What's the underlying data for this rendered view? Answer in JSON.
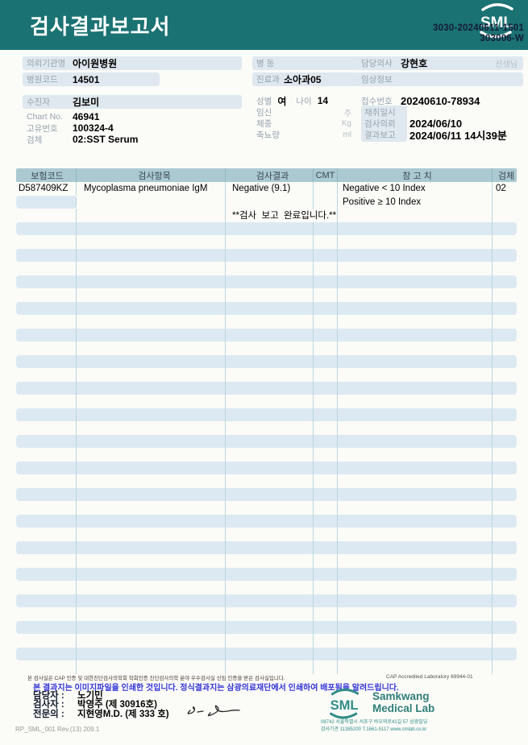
{
  "band": {
    "title": "검사결과보고서",
    "logo_text": "SML",
    "code1": "3030-20240611-1501",
    "code2": "303006-W"
  },
  "info": {
    "left": [
      {
        "label": "의뢰기관명",
        "value": "아이원병원"
      },
      {
        "label": "병원코드",
        "value": "14501"
      },
      {
        "label": "수진자",
        "value": "김보미"
      },
      {
        "label": "Chart No.",
        "value": "46941"
      },
      {
        "label": "고유번호",
        "value": "100324-4"
      },
      {
        "label": "검체",
        "value": "02:SST Serum"
      }
    ],
    "middle": {
      "ward_label": "병 동",
      "dept_label": "진료과",
      "dept_value": "소아과05",
      "sex_label": "성별",
      "sex_value": "여",
      "age_label": "나이",
      "age_value": "14",
      "pregnancy_label": "임신",
      "pregnancy_unit": "주",
      "weight_label": "체중",
      "weight_unit": "Kg",
      "urine_label": "축뇨량",
      "urine_unit": "ml"
    },
    "right": [
      {
        "label": "담당의사",
        "value": "강현호",
        "suffix": "선생님"
      },
      {
        "label": "임상정보",
        "value": ""
      },
      {
        "label": "접수번호",
        "value": "20240610-78934"
      },
      {
        "label": "채취일시",
        "value": ""
      },
      {
        "label": "검사의뢰",
        "value": "2024/06/10"
      },
      {
        "label": "결과보고",
        "value": "2024/06/11 14시39분"
      }
    ]
  },
  "table": {
    "headers": [
      "보험코드",
      "검사항목",
      "검사결과",
      "CMT",
      "참 고 치",
      "검체"
    ],
    "rows": [
      [
        "D587409KZ",
        "Mycoplasma pneumoniae IgM",
        "Negative (9.1)",
        "",
        "Negative < 10 Index",
        "02"
      ],
      [
        "",
        "",
        "",
        "",
        "Positive ≥ 10 Index",
        ""
      ],
      [
        "",
        "",
        "**검사  보고  완료입니다.**",
        "",
        "",
        ""
      ]
    ],
    "empty_row_count": 34
  },
  "footer": {
    "accreditation": "본 검사실은 CAP 인증 및 대한진단검사의학회 학회인증 진단검사의학 분야 우수검사실 신임 인증을 받은 검사실입니다.",
    "cap": "CAP Accredited Laboratory 69944-01",
    "notice": "본 결과지는 이미지파일을 인쇄한 것입니다. 정식결과지는 삼광의료재단에서 인쇄하여 배포됨을 알려드립니다.",
    "staff": [
      {
        "label": "담당자 :",
        "value": "노기민"
      },
      {
        "label": "검사자 :",
        "value": "박영주 (제 30916호)"
      },
      {
        "label": "전문의 :",
        "value": "지현영M.D. (제 333 호)"
      }
    ],
    "doc_code": "RP_SML_001 Rev.(13) 209.1",
    "logo": {
      "sml": "SML",
      "name_line1": "Samkwang",
      "name_line2": "Medical Lab",
      "addr1": "08742 서울특별시 서초구 바우뫼로41길 57 삼광빌딩",
      "addr2": "검사기관 11385200 T.1661-5117 www.smlab.co.kr"
    }
  },
  "colors": {
    "header_teal": "#1b7273",
    "table_header": "#abc9d1",
    "row_stripe": "#dde9f2",
    "pill": "#dfe8ef",
    "notice_blue": "#3434d6",
    "logo_teal": "#2f8d86"
  }
}
